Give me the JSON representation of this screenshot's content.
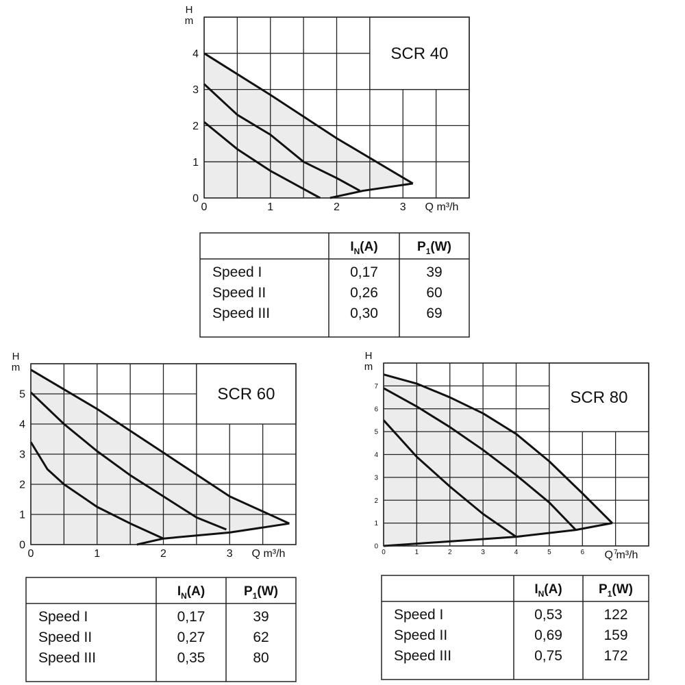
{
  "chart_data": [
    {
      "type": "line",
      "title": "SCR 40",
      "xlabel": "Q m³/h",
      "ylabel": [
        "H",
        "m"
      ],
      "xlim": [
        0,
        4
      ],
      "ylim": [
        0,
        5
      ],
      "xticks": [
        0,
        1,
        2,
        3
      ],
      "yticks": [
        0,
        1,
        2,
        3,
        4
      ],
      "xgrid_step": 0.5,
      "ygrid_step": 1,
      "grid": true,
      "color": "#111111",
      "fill": "#ececec",
      "series": [
        {
          "x": [
            0,
            1,
            2,
            3.15
          ],
          "values": [
            4,
            2.85,
            1.65,
            0.4
          ]
        },
        {
          "x": [
            0,
            0.5,
            1,
            1.5,
            2,
            2.35
          ],
          "values": [
            3.15,
            2.3,
            1.75,
            1.0,
            0.55,
            0.2
          ]
        },
        {
          "x": [
            0,
            0.5,
            1,
            1.5,
            1.75
          ],
          "values": [
            2.1,
            1.35,
            0.75,
            0.25,
            0
          ]
        },
        {
          "x": [
            3.15,
            2.4,
            1.9
          ],
          "values": [
            0.4,
            0.2,
            0
          ]
        }
      ]
    },
    {
      "type": "line",
      "title": "SCR 60",
      "xlabel": "Q m³/h",
      "ylabel": [
        "H",
        "m"
      ],
      "xlim": [
        0,
        4
      ],
      "ylim": [
        0,
        6
      ],
      "xticks": [
        0,
        1,
        2,
        3
      ],
      "yticks": [
        0,
        1,
        2,
        3,
        4,
        5
      ],
      "xgrid_step": 0.5,
      "ygrid_step": 1,
      "grid": true,
      "color": "#111111",
      "fill": "#ececec",
      "series": [
        {
          "x": [
            0,
            1,
            2,
            3,
            3.9
          ],
          "values": [
            5.8,
            4.5,
            3.05,
            1.6,
            0.7
          ]
        },
        {
          "x": [
            0,
            0.5,
            1,
            1.5,
            2,
            2.5,
            2.95
          ],
          "values": [
            5.05,
            4.0,
            3.1,
            2.3,
            1.6,
            0.9,
            0.5
          ]
        },
        {
          "x": [
            0,
            0.25,
            0.5,
            1,
            1.5,
            2
          ],
          "values": [
            3.4,
            2.5,
            2.0,
            1.25,
            0.7,
            0.2
          ]
        },
        {
          "x": [
            3.9,
            3,
            2,
            1.6
          ],
          "values": [
            0.7,
            0.4,
            0.2,
            0
          ]
        }
      ]
    },
    {
      "type": "line",
      "title": "SCR 80",
      "xlabel": "Q m³/h",
      "ylabel": [
        "H",
        "m"
      ],
      "xlim": [
        0,
        8
      ],
      "ylim": [
        0,
        8
      ],
      "xticks": [
        0,
        1,
        2,
        3,
        4,
        5,
        6,
        7
      ],
      "yticks": [
        0,
        1,
        2,
        3,
        4,
        5,
        6,
        7
      ],
      "xgrid_step": 1,
      "ygrid_step": 1,
      "grid": true,
      "color": "#111111",
      "fill": "#ececec",
      "series": [
        {
          "x": [
            0,
            1,
            2,
            3,
            4,
            5,
            6,
            6.9
          ],
          "values": [
            7.5,
            7.1,
            6.5,
            5.8,
            4.9,
            3.7,
            2.3,
            1.0
          ]
        },
        {
          "x": [
            0,
            1,
            2,
            3,
            4,
            5,
            5.8
          ],
          "values": [
            6.9,
            6.1,
            5.2,
            4.2,
            3.1,
            1.9,
            0.7
          ]
        },
        {
          "x": [
            0,
            1,
            2,
            3,
            4
          ],
          "values": [
            5.5,
            3.9,
            2.6,
            1.4,
            0.4
          ]
        },
        {
          "x": [
            6.9,
            5.8,
            4,
            2,
            0
          ],
          "values": [
            1.0,
            0.7,
            0.4,
            0.2,
            0
          ]
        }
      ]
    }
  ],
  "tables": [
    {
      "header": [
        {
          "main": "I",
          "sub": "N",
          "unit": "(A)"
        },
        {
          "main": "P",
          "sub": "1",
          "unit": "(W)"
        }
      ],
      "rows": [
        [
          "Speed I",
          "0,17",
          "39"
        ],
        [
          "Speed II",
          "0,26",
          "60"
        ],
        [
          "Speed III",
          "0,30",
          "69"
        ]
      ]
    },
    {
      "header": [
        {
          "main": "I",
          "sub": "N",
          "unit": "(A)"
        },
        {
          "main": "P",
          "sub": "1",
          "unit": "(W)"
        }
      ],
      "rows": [
        [
          "Speed I",
          "0,17",
          "39"
        ],
        [
          "Speed II",
          "0,27",
          "62"
        ],
        [
          "Speed III",
          "0,35",
          "80"
        ]
      ]
    },
    {
      "header": [
        {
          "main": "I",
          "sub": "N",
          "unit": "(A)"
        },
        {
          "main": "P",
          "sub": "1",
          "unit": "(W)"
        }
      ],
      "rows": [
        [
          "Speed I",
          "0,53",
          "122"
        ],
        [
          "Speed II",
          "0,69",
          "159"
        ],
        [
          "Speed III",
          "0,75",
          "172"
        ]
      ]
    }
  ]
}
